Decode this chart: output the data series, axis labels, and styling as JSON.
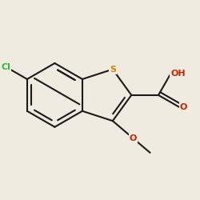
{
  "bg_color": "#f0ebe0",
  "bond_color": "#1a1a1a",
  "bond_width": 1.5,
  "atom_colors": {
    "S": "#cc8800",
    "Cl": "#33bb33",
    "O": "#cc2200"
  },
  "font_size": 8
}
